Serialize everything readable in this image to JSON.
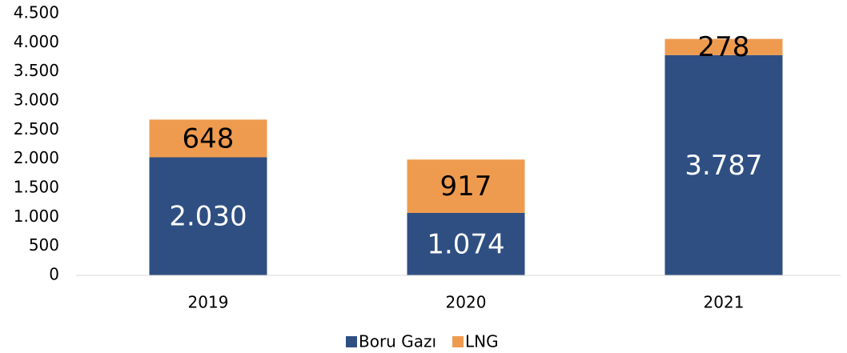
{
  "chart_data": {
    "type": "stacked_bar",
    "categories": [
      "2019",
      "2020",
      "2021"
    ],
    "series": [
      {
        "name": "Boru Gazı",
        "color": "#2f4f82",
        "values": [
          2030,
          1074,
          3787
        ],
        "value_labels": [
          "2.030",
          "1.074",
          "3.787"
        ]
      },
      {
        "name": "LNG",
        "color": "#ef9b4f",
        "values": [
          648,
          917,
          278
        ]
      }
    ],
    "ylim": [
      0,
      4500
    ],
    "yticks": [
      0,
      500,
      {
        "value": 1000,
        "label": "1.000"
      },
      {
        "value": 1500,
        "label": "1.500"
      },
      {
        "value": 2000,
        "label": "2.000"
      },
      {
        "value": 2500,
        "label": "2.500"
      },
      {
        "value": 3000,
        "label": "3.000"
      },
      {
        "value": 3500,
        "label": "3.500"
      },
      {
        "value": 4000,
        "label": "4.000"
      },
      {
        "value": 4500,
        "label": "4.500"
      }
    ],
    "grid": false,
    "legend": "bottom"
  }
}
